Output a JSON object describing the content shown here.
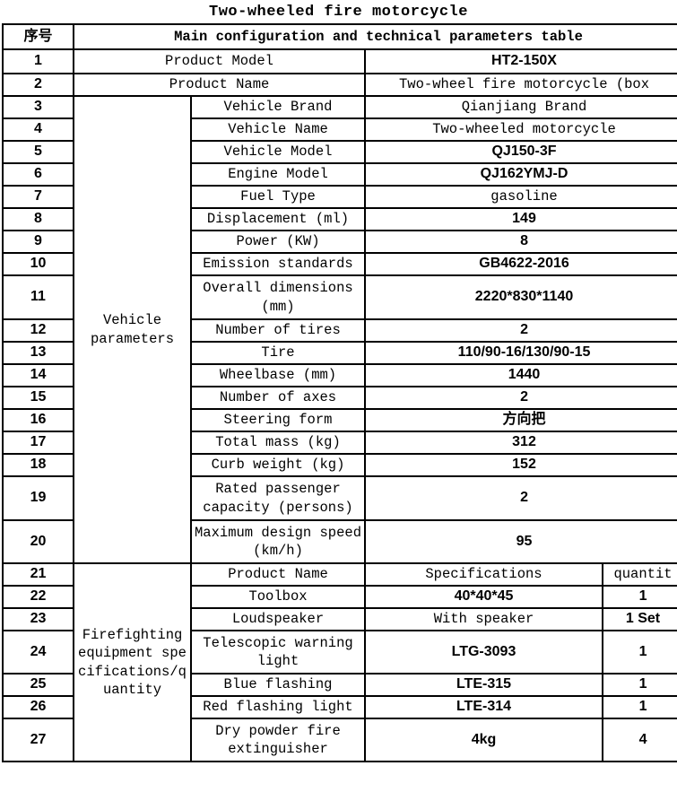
{
  "title": "Two-wheeled fire motorcycle",
  "table": {
    "serial_header": "序号",
    "main_header": "Main configuration and technical parameters table",
    "vehicle_group_label": "Vehicle parameters",
    "firefighting_group_label": "Firefighting equipment specifications/quantity",
    "rows": [
      {
        "no": "1",
        "label": "Product Model",
        "value": "HT2-150X"
      },
      {
        "no": "2",
        "label": "Product Name",
        "value": "Two-wheel fire motorcycle (box"
      },
      {
        "no": "3",
        "name": "Vehicle Brand",
        "value": "Qianjiang Brand"
      },
      {
        "no": "4",
        "name": "Vehicle Name",
        "value": "Two-wheeled motorcycle"
      },
      {
        "no": "5",
        "name": "Vehicle Model",
        "value": "QJ150-3F"
      },
      {
        "no": "6",
        "name": "Engine Model",
        "value": "QJ162YMJ-D"
      },
      {
        "no": "7",
        "name": "Fuel Type",
        "value": "gasoline"
      },
      {
        "no": "8",
        "name": "Displacement (ml)",
        "value": "149"
      },
      {
        "no": "9",
        "name": "Power (KW)",
        "value": "8"
      },
      {
        "no": "10",
        "name": "Emission standards",
        "value": "GB4622-2016"
      },
      {
        "no": "11",
        "name": "Overall dimensions (mm)",
        "value": "2220*830*1140"
      },
      {
        "no": "12",
        "name": "Number of tires",
        "value": "2"
      },
      {
        "no": "13",
        "name": "Tire",
        "value": "110/90-16/130/90-15"
      },
      {
        "no": "14",
        "name": "Wheelbase (mm)",
        "value": "1440"
      },
      {
        "no": "15",
        "name": "Number of axes",
        "value": "2"
      },
      {
        "no": "16",
        "name": "Steering form",
        "value": "方向把"
      },
      {
        "no": "17",
        "name": "Total mass (kg)",
        "value": "312"
      },
      {
        "no": "18",
        "name": "Curb weight (kg)",
        "value": "152"
      },
      {
        "no": "19",
        "name": "Rated passenger capacity (persons)",
        "value": "2"
      },
      {
        "no": "20",
        "name": "Maximum design speed (km/h)",
        "value": "95"
      },
      {
        "no": "21",
        "name": "Product Name",
        "value": "Specifications",
        "qty": "quantit"
      },
      {
        "no": "22",
        "name": "Toolbox",
        "value": "40*40*45",
        "qty": "1"
      },
      {
        "no": "23",
        "name": "Loudspeaker",
        "value": "With speaker",
        "qty": "1 Set"
      },
      {
        "no": "24",
        "name": "Telescopic warning light",
        "value": "LTG-3093",
        "qty": "1"
      },
      {
        "no": "25",
        "name": "Blue flashing",
        "value": "LTE-315",
        "qty": "1"
      },
      {
        "no": "26",
        "name": "Red flashing light",
        "value": "LTE-314",
        "qty": "1"
      },
      {
        "no": "27",
        "name": "Dry powder fire extinguisher",
        "value": "4kg",
        "qty": "4"
      }
    ]
  },
  "colors": {
    "border": "#000000",
    "text": "#000000",
    "background": "#ffffff"
  }
}
